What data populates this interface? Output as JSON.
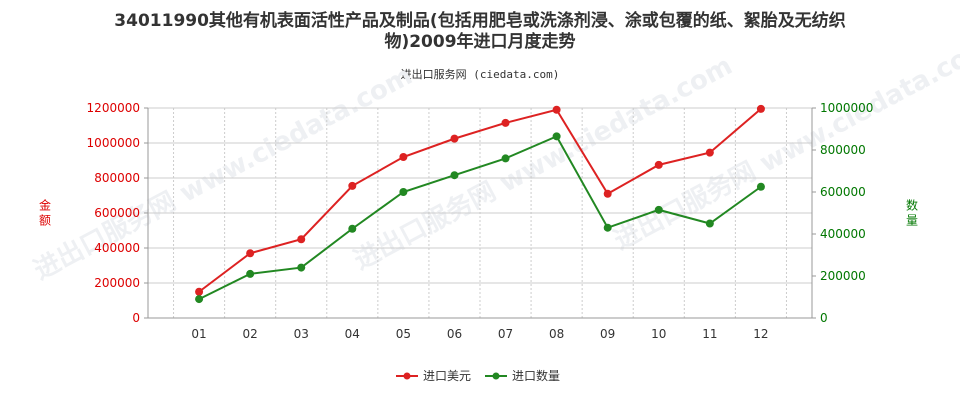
{
  "title_line1": "34011990其他有机表面活性产品及制品(包括用肥皂或洗涤剂浸、涂或包覆的纸、絮胎及无纺织",
  "title_line2": "物)2009年进口月度走势",
  "subtitle": "进出口服务网 (ciedata.com)",
  "watermark": "进出口服务网 www.ciedata.com",
  "colors": {
    "left_axis": "#dd0000",
    "right_axis": "#007700",
    "series_value": "#dd2222",
    "series_qty": "#228822",
    "grid": "#cccccc"
  },
  "chart_data": {
    "type": "line",
    "x": [
      "01",
      "02",
      "03",
      "04",
      "05",
      "06",
      "07",
      "08",
      "09",
      "10",
      "11",
      "12"
    ],
    "y_left": {
      "label": "金额",
      "min": 0,
      "max": 1200000,
      "ticks": [
        0,
        200000,
        400000,
        600000,
        800000,
        1000000,
        1200000
      ]
    },
    "y_right": {
      "label": "数量",
      "min": 0,
      "max": 1000000,
      "ticks": [
        0,
        200000,
        400000,
        600000,
        800000,
        1000000
      ]
    },
    "series": [
      {
        "name": "进口美元",
        "axis": "left",
        "values": [
          150000,
          370000,
          450000,
          755000,
          920000,
          1025000,
          1115000,
          1190000,
          710000,
          875000,
          945000,
          1195000
        ]
      },
      {
        "name": "进口数量",
        "axis": "right",
        "values": [
          90000,
          210000,
          240000,
          425000,
          600000,
          680000,
          760000,
          865000,
          430000,
          515000,
          450000,
          625000
        ]
      }
    ],
    "legend_position": "bottom"
  }
}
